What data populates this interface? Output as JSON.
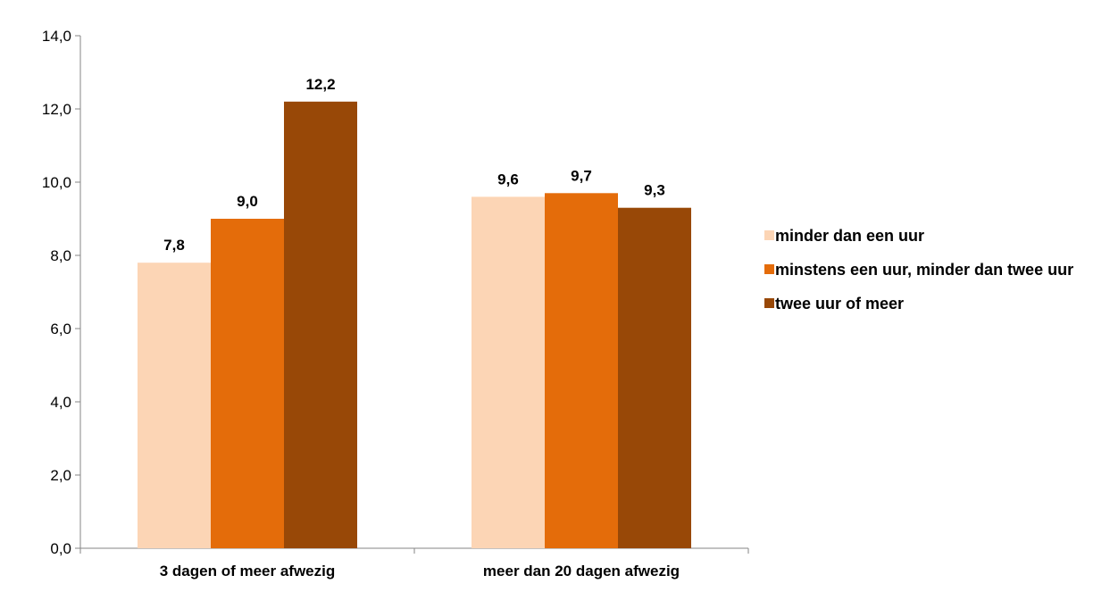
{
  "chart_data": {
    "type": "bar",
    "title": "",
    "xlabel": "",
    "ylabel": "",
    "categories": [
      "3 dagen of meer afwezig",
      "meer dan 20 dagen afwezig"
    ],
    "series": [
      {
        "name": "minder dan een  uur",
        "values": [
          7.8,
          9.6
        ],
        "labels": [
          "7,8",
          "9,6"
        ],
        "color": "#FCD5B5"
      },
      {
        "name": "minstens een  uur, minder dan twee uur",
        "values": [
          9.0,
          9.7
        ],
        "labels": [
          "9,0",
          "9,7"
        ],
        "color": "#E46C0A"
      },
      {
        "name": "twee uur of meer",
        "values": [
          12.2,
          9.3
        ],
        "labels": [
          "12,2",
          "9,3"
        ],
        "color": "#984807"
      }
    ],
    "ylim": [
      0,
      14
    ],
    "yticks": [
      "0,0",
      "2,0",
      "4,0",
      "6,0",
      "8,0",
      "10,0",
      "12,0",
      "14,0"
    ],
    "grid": false,
    "legend_position": "right"
  }
}
